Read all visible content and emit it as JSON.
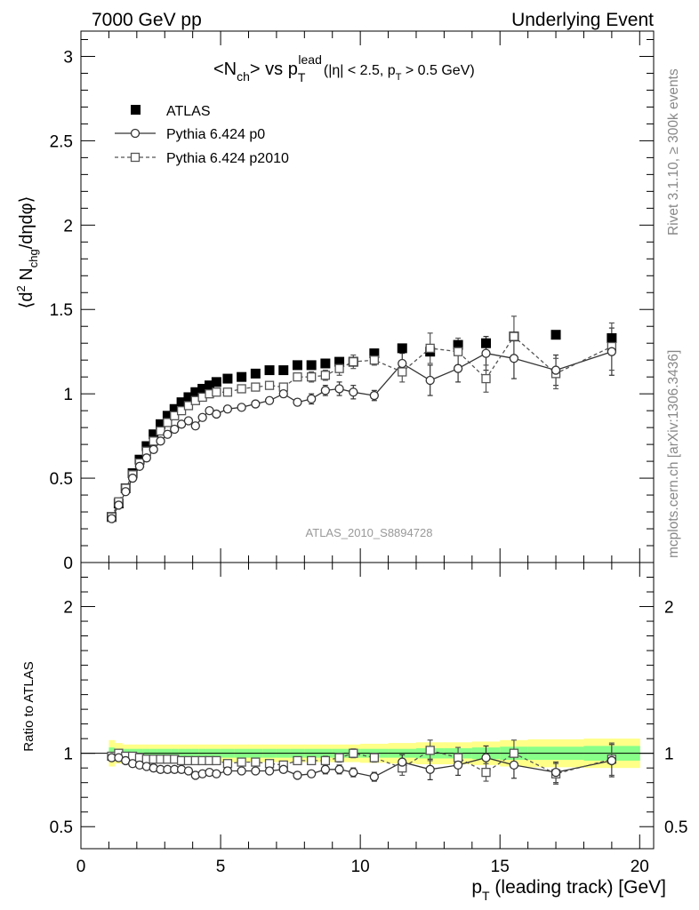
{
  "header": {
    "left": "7000 GeV pp",
    "right": "Underlying Event"
  },
  "side_labels": {
    "rivet": "Rivet 3.1.10, ≥ 300k events",
    "mcplots": "mcplots.cern.ch [arXiv:1306.3436]"
  },
  "colors": {
    "atlas": "#000000",
    "p0": "#333333",
    "p2010": "#555555",
    "band_yellow": "#ffff88",
    "band_green": "#88ff88",
    "watermark": "#999999"
  },
  "chart_data": [
    {
      "type": "scatter",
      "title": "<N_ch> vs p_T^lead (|η| < 2.5, p_T > 0.5 GeV)",
      "title_parts": {
        "main": "<N",
        "main_sub": "ch",
        "vs": "> vs p",
        "vs_sub": "T",
        "vs_sup": "lead",
        "cuts": "(|η| < 2.5, p",
        "cuts_sub": "T",
        "cuts_end": " > 0.5 GeV)"
      },
      "ylabel": "⟨d² N_chg/dηdφ⟩",
      "ylabel_parts": {
        "a": "⟨d",
        "a_sup": "2",
        "b": " N",
        "b_sub": "chg",
        "c": "/dηdφ⟩"
      },
      "analysis_label": "ATLAS_2010_S8894728",
      "ylim": [
        0,
        3.15
      ],
      "xlim": [
        0,
        20.5
      ],
      "yticks": [
        "0",
        "0.5",
        "1",
        "1.5",
        "2",
        "2.5",
        "3"
      ],
      "legend_position": "top-left",
      "x": [
        1.1,
        1.35,
        1.6,
        1.85,
        2.1,
        2.35,
        2.6,
        2.85,
        3.1,
        3.35,
        3.6,
        3.85,
        4.1,
        4.35,
        4.6,
        4.85,
        5.25,
        5.75,
        6.25,
        6.75,
        7.25,
        7.75,
        8.25,
        8.75,
        9.25,
        9.75,
        10.5,
        11.5,
        12.5,
        13.5,
        14.5,
        15.5,
        17.0,
        19.0
      ],
      "series": [
        {
          "name": "ATLAS",
          "marker": "filled-square",
          "values": [
            0.27,
            0.35,
            0.44,
            0.53,
            0.61,
            0.69,
            0.76,
            0.82,
            0.87,
            0.91,
            0.95,
            0.98,
            1.01,
            1.03,
            1.05,
            1.07,
            1.09,
            1.1,
            1.12,
            1.14,
            1.14,
            1.17,
            1.17,
            1.18,
            1.19,
            1.19,
            1.24,
            1.27,
            1.25,
            1.29,
            1.3,
            1.34,
            1.35,
            1.33
          ]
        },
        {
          "name": "Pythia 6.424 p0",
          "marker": "open-circle",
          "line": "solid",
          "values": [
            0.26,
            0.34,
            0.42,
            0.5,
            0.57,
            0.62,
            0.67,
            0.72,
            0.76,
            0.79,
            0.82,
            0.84,
            0.81,
            0.86,
            0.9,
            0.88,
            0.91,
            0.92,
            0.94,
            0.96,
            1.0,
            0.95,
            0.97,
            1.02,
            1.03,
            1.01,
            0.99,
            1.18,
            1.08,
            1.15,
            1.24,
            1.21,
            1.14,
            1.25
          ],
          "errors": [
            0.01,
            0.01,
            0.01,
            0.01,
            0.01,
            0.01,
            0.01,
            0.01,
            0.01,
            0.01,
            0.01,
            0.01,
            0.01,
            0.01,
            0.01,
            0.01,
            0.01,
            0.01,
            0.01,
            0.01,
            0.02,
            0.02,
            0.03,
            0.03,
            0.04,
            0.04,
            0.03,
            0.06,
            0.09,
            0.08,
            0.1,
            0.12,
            0.09,
            0.14
          ]
        },
        {
          "name": "Pythia 6.424 p2010",
          "marker": "open-square",
          "line": "dashed",
          "values": [
            0.27,
            0.36,
            0.44,
            0.52,
            0.59,
            0.66,
            0.72,
            0.78,
            0.83,
            0.87,
            0.9,
            0.93,
            0.96,
            0.98,
            1.0,
            1.01,
            1.01,
            1.03,
            1.04,
            1.05,
            1.04,
            1.1,
            1.1,
            1.11,
            1.15,
            1.19,
            1.2,
            1.13,
            1.27,
            1.25,
            1.09,
            1.34,
            1.12,
            1.28
          ],
          "errors": [
            0.01,
            0.01,
            0.01,
            0.01,
            0.01,
            0.01,
            0.01,
            0.01,
            0.01,
            0.01,
            0.01,
            0.01,
            0.01,
            0.01,
            0.01,
            0.01,
            0.01,
            0.01,
            0.01,
            0.01,
            0.02,
            0.02,
            0.03,
            0.03,
            0.04,
            0.04,
            0.03,
            0.06,
            0.09,
            0.08,
            0.08,
            0.12,
            0.09,
            0.14
          ]
        }
      ]
    },
    {
      "type": "scatter",
      "ylabel": "Ratio to ATLAS",
      "xlabel": "p_T (leading track) [GeV]",
      "xlabel_parts": {
        "a": "p",
        "a_sub": "T",
        "b": " (leading track) [GeV]"
      },
      "ylim": [
        0.35,
        2.3
      ],
      "xlim": [
        0,
        20.5
      ],
      "yticks": [
        "0.5",
        "1",
        "2"
      ],
      "xticks": [
        "0",
        "5",
        "10",
        "15",
        "20"
      ],
      "band_edges": [
        1.0,
        1.2,
        1.475,
        1.725,
        1.975,
        2.225,
        2.475,
        2.725,
        2.975,
        3.225,
        3.475,
        3.725,
        3.975,
        4.225,
        4.475,
        4.725,
        5.0,
        5.5,
        6.0,
        6.5,
        7.0,
        7.5,
        8.0,
        8.5,
        9.0,
        9.5,
        10.0,
        11.0,
        12.0,
        13.0,
        14.0,
        15.0,
        16.0,
        18.0,
        20.0
      ],
      "band_yellow_half": [
        0.09,
        0.07,
        0.06,
        0.06,
        0.06,
        0.06,
        0.06,
        0.06,
        0.06,
        0.06,
        0.06,
        0.06,
        0.06,
        0.06,
        0.06,
        0.06,
        0.06,
        0.06,
        0.06,
        0.06,
        0.06,
        0.06,
        0.06,
        0.06,
        0.06,
        0.06,
        0.065,
        0.07,
        0.075,
        0.075,
        0.08,
        0.09,
        0.095,
        0.1
      ],
      "band_green_half": [
        0.04,
        0.03,
        0.03,
        0.03,
        0.03,
        0.03,
        0.03,
        0.03,
        0.03,
        0.03,
        0.03,
        0.03,
        0.03,
        0.03,
        0.03,
        0.03,
        0.03,
        0.03,
        0.03,
        0.03,
        0.03,
        0.03,
        0.03,
        0.03,
        0.03,
        0.03,
        0.03,
        0.03,
        0.035,
        0.035,
        0.04,
        0.045,
        0.045,
        0.05
      ],
      "series": [
        {
          "name": "Pythia 6.424 p0",
          "values": [
            0.97,
            0.97,
            0.95,
            0.93,
            0.92,
            0.91,
            0.9,
            0.89,
            0.89,
            0.89,
            0.89,
            0.88,
            0.85,
            0.86,
            0.87,
            0.86,
            0.88,
            0.88,
            0.88,
            0.88,
            0.89,
            0.85,
            0.86,
            0.89,
            0.89,
            0.87,
            0.84,
            0.94,
            0.89,
            0.92,
            0.97,
            0.92,
            0.87,
            0.95
          ],
          "errors": [
            0.01,
            0.01,
            0.01,
            0.01,
            0.01,
            0.01,
            0.01,
            0.01,
            0.01,
            0.01,
            0.01,
            0.01,
            0.01,
            0.01,
            0.01,
            0.01,
            0.01,
            0.01,
            0.01,
            0.01,
            0.02,
            0.02,
            0.02,
            0.03,
            0.03,
            0.03,
            0.03,
            0.05,
            0.07,
            0.07,
            0.08,
            0.09,
            0.07,
            0.11
          ]
        },
        {
          "name": "Pythia 6.424 p2010",
          "values": [
            0.98,
            1.0,
            0.98,
            0.98,
            0.97,
            0.96,
            0.96,
            0.96,
            0.96,
            0.96,
            0.95,
            0.95,
            0.95,
            0.95,
            0.95,
            0.95,
            0.93,
            0.94,
            0.94,
            0.93,
            0.92,
            0.95,
            0.95,
            0.95,
            0.97,
            1.0,
            0.97,
            0.9,
            1.02,
            0.97,
            0.87,
            1.0,
            0.86,
            0.96
          ],
          "errors": [
            0.01,
            0.01,
            0.01,
            0.01,
            0.01,
            0.01,
            0.01,
            0.01,
            0.01,
            0.01,
            0.01,
            0.01,
            0.01,
            0.01,
            0.01,
            0.01,
            0.01,
            0.01,
            0.01,
            0.01,
            0.02,
            0.02,
            0.02,
            0.03,
            0.03,
            0.03,
            0.03,
            0.05,
            0.07,
            0.07,
            0.06,
            0.09,
            0.07,
            0.11
          ]
        }
      ]
    }
  ]
}
